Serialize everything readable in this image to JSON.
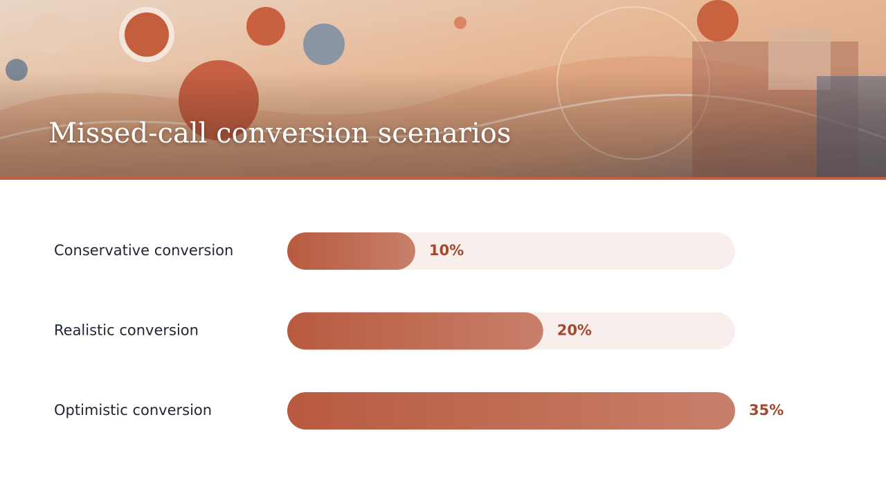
{
  "chart_data": {
    "type": "bar",
    "orientation": "horizontal",
    "title": "Missed-call conversion scenarios",
    "categories": [
      "Conservative conversion",
      "Realistic conversion",
      "Optimistic conversion"
    ],
    "values": [
      10,
      20,
      35
    ],
    "value_labels": [
      "10%",
      "20%",
      "35%"
    ],
    "color": "#b85a3f",
    "track_color": "#f8eeeb"
  }
}
